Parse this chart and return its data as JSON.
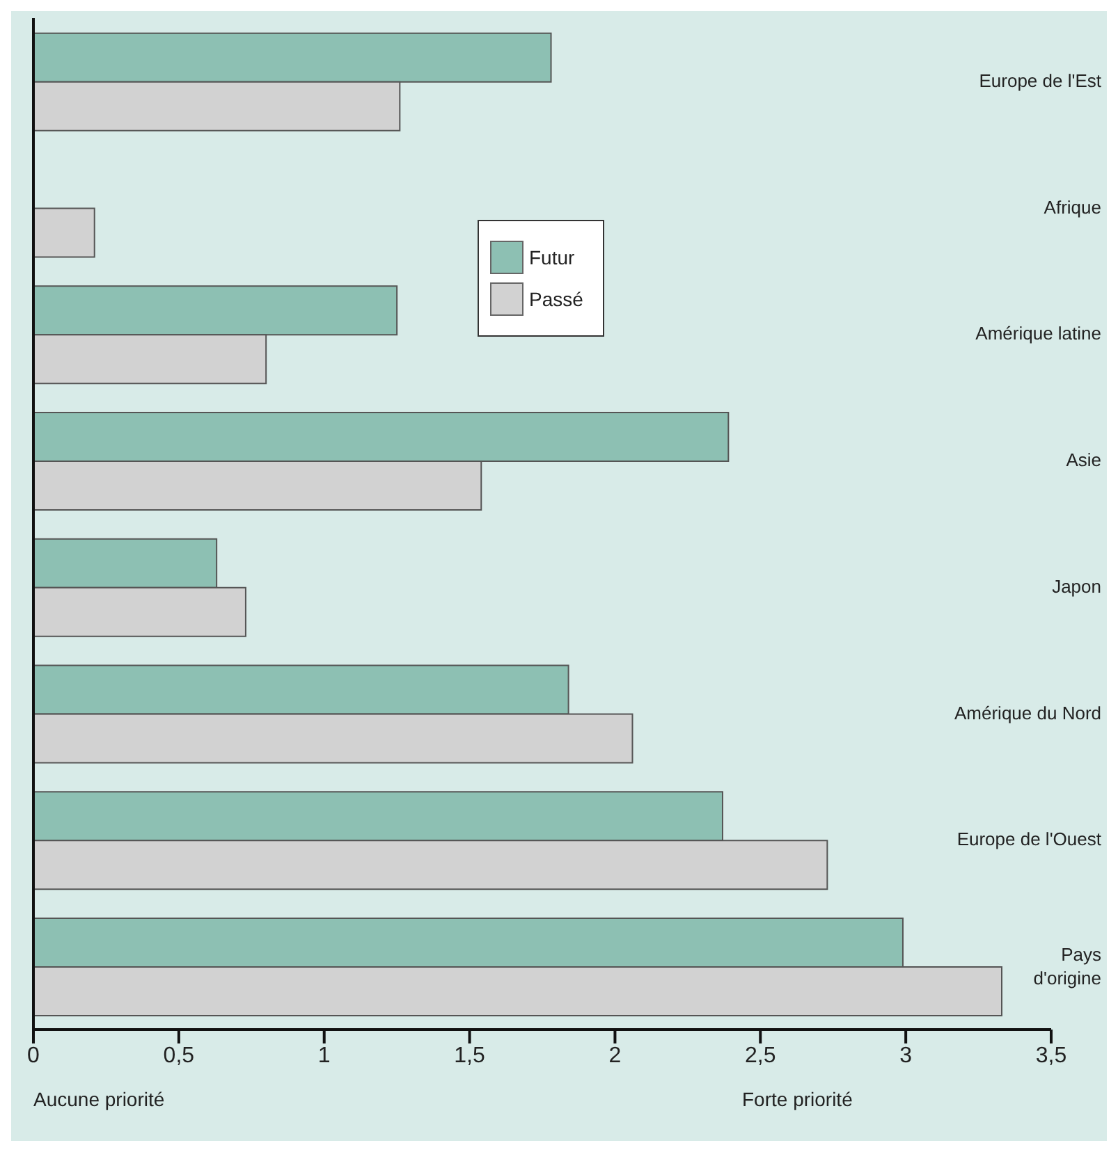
{
  "chart_data": {
    "type": "bar",
    "orientation": "horizontal",
    "categories": [
      "Europe de l'Est",
      "Afrique",
      "Amérique latine",
      "Asie",
      "Japon",
      "Amérique du Nord",
      "Europe de l'Ouest",
      "Pays\nd'origine"
    ],
    "series": [
      {
        "name": "Futur",
        "color": "#8dc0b3",
        "values": [
          1.78,
          null,
          1.25,
          2.39,
          0.63,
          1.84,
          2.37,
          2.99
        ]
      },
      {
        "name": "Passé",
        "color": "#d2d2d2",
        "values": [
          1.26,
          0.21,
          0.8,
          1.54,
          0.73,
          2.06,
          2.73,
          3.33
        ]
      }
    ],
    "xlim": [
      0,
      3.5
    ],
    "xticks": [
      0,
      {
        "value": 0.5,
        "label": "0,5"
      },
      1,
      {
        "value": 1.5,
        "label": "1,5"
      },
      2,
      {
        "value": 2.5,
        "label": "2,5"
      },
      3,
      {
        "value": 3.5,
        "label": "3,5"
      }
    ],
    "annotations": [
      "Aucune priorité",
      "Forte priorité"
    ],
    "legend": "top",
    "grid": false
  }
}
